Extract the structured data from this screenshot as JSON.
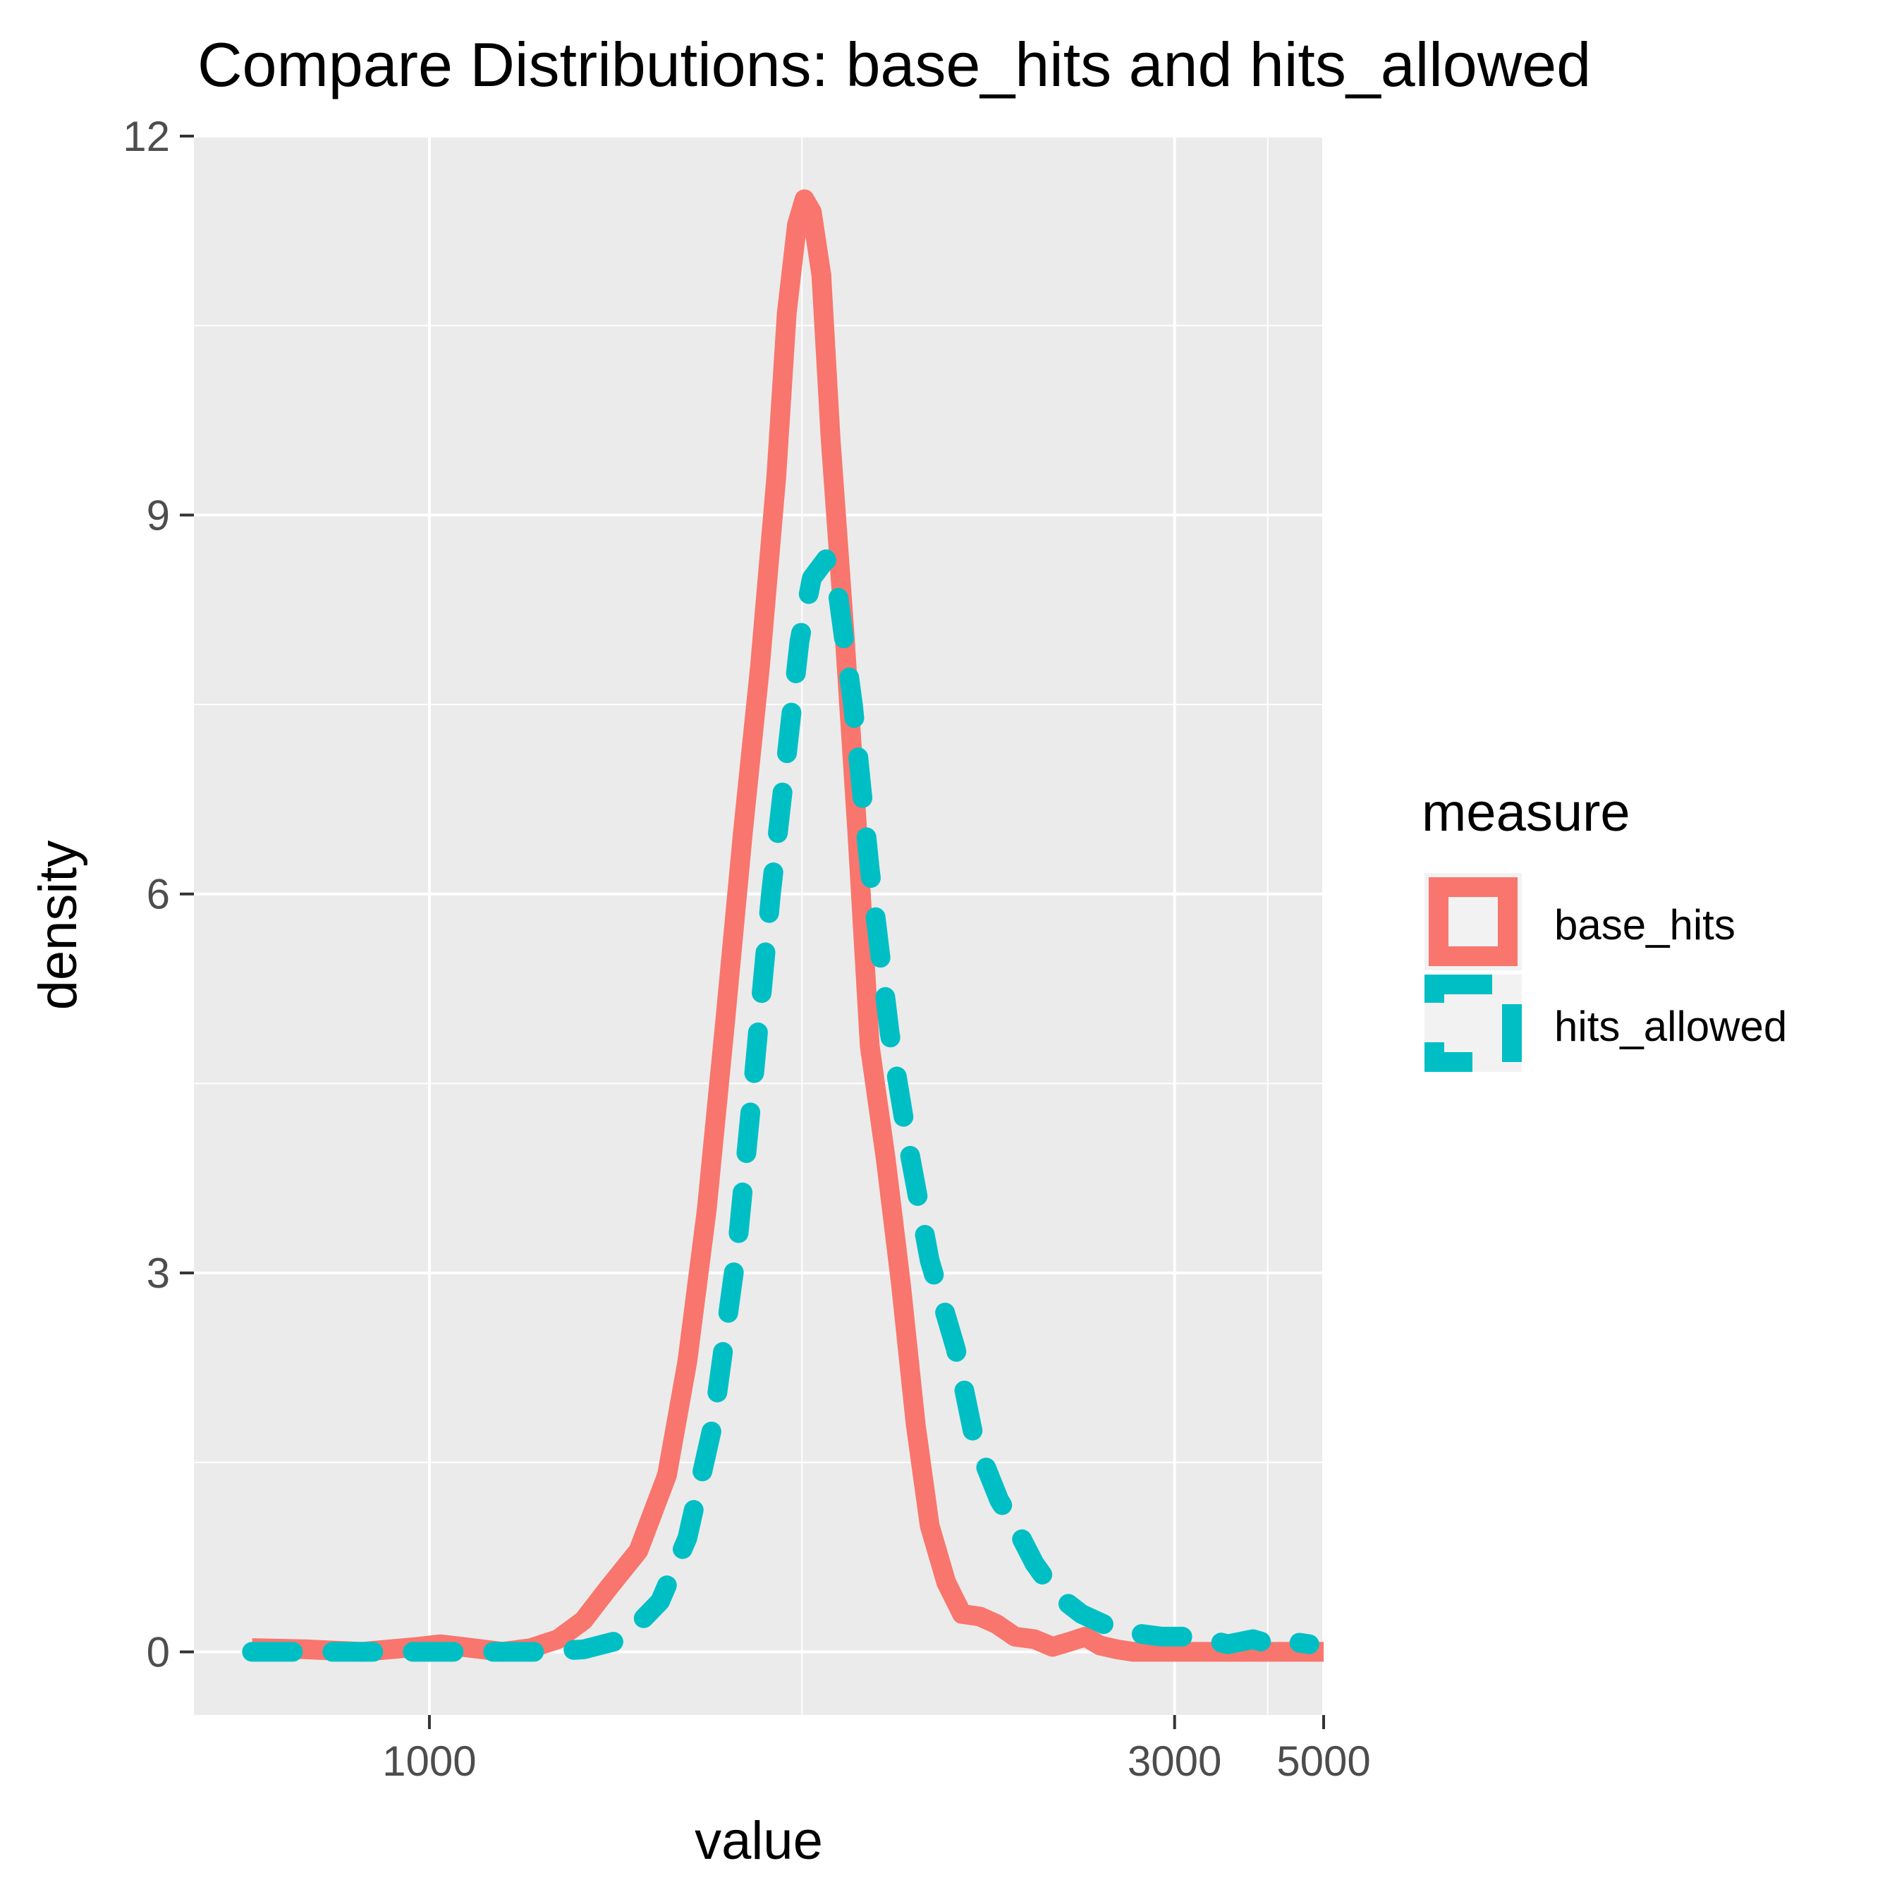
{
  "chart_data": {
    "type": "line",
    "title": "Compare Distributions: base_hits and hits_allowed",
    "xlabel": "value",
    "ylabel": "density",
    "x_scale": "reciprocal",
    "xlim": [
      826,
      5000
    ],
    "ylim": [
      -0.5,
      12
    ],
    "x_ticks": [
      1000,
      3000,
      5000
    ],
    "x_minor_ticks": [
      1500,
      4000
    ],
    "y_ticks": [
      0,
      3,
      6,
      9,
      12
    ],
    "grid": true,
    "legend": {
      "title": "measure",
      "position": "right"
    },
    "series": [
      {
        "name": "base_hits",
        "color": "#F8766D",
        "line_style": "solid",
        "points": [
          [
            863,
            0.03
          ],
          [
            901,
            0.02
          ],
          [
            943,
            0.0
          ],
          [
            990,
            0.04
          ],
          [
            1010,
            0.06
          ],
          [
            1030,
            0.04
          ],
          [
            1050,
            0.02
          ],
          [
            1070,
            0.0
          ],
          [
            1100,
            0.03
          ],
          [
            1130,
            0.1
          ],
          [
            1160,
            0.25
          ],
          [
            1190,
            0.5
          ],
          [
            1230,
            0.8
          ],
          [
            1270,
            1.4
          ],
          [
            1300,
            2.3
          ],
          [
            1330,
            3.5
          ],
          [
            1360,
            5.0
          ],
          [
            1390,
            6.5
          ],
          [
            1420,
            7.8
          ],
          [
            1450,
            9.3
          ],
          [
            1470,
            10.6
          ],
          [
            1490,
            11.3
          ],
          [
            1505,
            11.5
          ],
          [
            1520,
            11.4
          ],
          [
            1540,
            10.9
          ],
          [
            1560,
            9.6
          ],
          [
            1590,
            8.1
          ],
          [
            1620,
            6.5
          ],
          [
            1650,
            4.8
          ],
          [
            1690,
            3.9
          ],
          [
            1730,
            2.9
          ],
          [
            1770,
            1.8
          ],
          [
            1810,
            1.0
          ],
          [
            1860,
            0.55
          ],
          [
            1910,
            0.3
          ],
          [
            1970,
            0.28
          ],
          [
            2030,
            0.22
          ],
          [
            2100,
            0.12
          ],
          [
            2180,
            0.1
          ],
          [
            2260,
            0.04
          ],
          [
            2340,
            0.08
          ],
          [
            2420,
            0.12
          ],
          [
            2500,
            0.05
          ],
          [
            2600,
            0.02
          ],
          [
            2700,
            0.0
          ],
          [
            2850,
            0.0
          ],
          [
            3000,
            0.0
          ],
          [
            3300,
            0.0
          ],
          [
            3700,
            0.0
          ],
          [
            4200,
            0.0
          ],
          [
            5000,
            0.0
          ]
        ]
      },
      {
        "name": "hits_allowed",
        "color": "#00BFC4",
        "line_style": "dashed",
        "points": [
          [
            863,
            0.0
          ],
          [
            905,
            0.0
          ],
          [
            950,
            0.0
          ],
          [
            1010,
            0.0
          ],
          [
            1060,
            0.0
          ],
          [
            1110,
            0.0
          ],
          [
            1160,
            0.02
          ],
          [
            1210,
            0.1
          ],
          [
            1260,
            0.4
          ],
          [
            1300,
            0.9
          ],
          [
            1340,
            1.8
          ],
          [
            1380,
            3.2
          ],
          [
            1410,
            4.6
          ],
          [
            1440,
            6.0
          ],
          [
            1470,
            7.1
          ],
          [
            1495,
            8.0
          ],
          [
            1520,
            8.5
          ],
          [
            1550,
            8.65
          ],
          [
            1575,
            8.4
          ],
          [
            1610,
            7.5
          ],
          [
            1650,
            6.2
          ],
          [
            1700,
            4.9
          ],
          [
            1750,
            4.0
          ],
          [
            1810,
            3.1
          ],
          [
            1890,
            2.4
          ],
          [
            1950,
            1.7
          ],
          [
            2040,
            1.2
          ],
          [
            2100,
            1.0
          ],
          [
            2180,
            0.7
          ],
          [
            2280,
            0.45
          ],
          [
            2400,
            0.3
          ],
          [
            2550,
            0.2
          ],
          [
            2700,
            0.15
          ],
          [
            2900,
            0.12
          ],
          [
            3200,
            0.12
          ],
          [
            3500,
            0.06
          ],
          [
            3800,
            0.1
          ],
          [
            4100,
            0.05
          ],
          [
            4400,
            0.08
          ],
          [
            4700,
            0.06
          ]
        ]
      }
    ]
  }
}
